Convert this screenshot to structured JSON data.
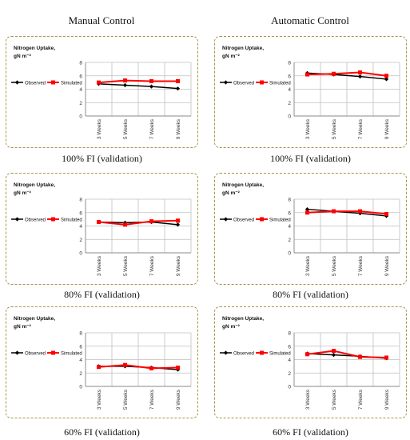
{
  "headers": {
    "left": "Manual Control",
    "right": "Automatic Control"
  },
  "colors": {
    "observed": "#000000",
    "simulated": "#ff0000",
    "grid": "#bfbfbf",
    "frame": "#a8924a"
  },
  "chart_data": [
    {
      "type": "line",
      "ylabel_line1": "Nitrogen Uptake,",
      "ylabel_line2": "gN m⁻²",
      "categories": [
        "3 Weeks",
        "5 Weeks",
        "7 Weeks",
        "9 Weeks"
      ],
      "ylim": [
        0,
        8
      ],
      "yticks": [
        "0",
        "2",
        "4",
        "6",
        "8"
      ],
      "grid": true,
      "legend": "left",
      "series": [
        {
          "name": "Observed",
          "values": [
            4.8,
            4.6,
            4.4,
            4.1
          ]
        },
        {
          "name": "Simulated",
          "values": [
            5.0,
            5.3,
            5.2,
            5.2
          ]
        }
      ],
      "caption": "100% FI (validation)"
    },
    {
      "type": "line",
      "ylabel_line1": "Nitrogen Uptake,",
      "ylabel_line2": "gN m⁻²",
      "categories": [
        "3 Weeks",
        "5 Weeks",
        "7 Weeks",
        "9 Weeks"
      ],
      "ylim": [
        0,
        8
      ],
      "yticks": [
        "0",
        "2",
        "4",
        "6",
        "8"
      ],
      "grid": true,
      "legend": "left",
      "series": [
        {
          "name": "Observed",
          "values": [
            6.4,
            6.2,
            5.9,
            5.5
          ]
        },
        {
          "name": "Simulated",
          "values": [
            6.2,
            6.3,
            6.5,
            6.0
          ]
        }
      ],
      "caption": "100% FI (validation)"
    },
    {
      "type": "line",
      "ylabel_line1": "Nitrogen Uptake,",
      "ylabel_line2": "gN m⁻²",
      "categories": [
        "3 Weeks",
        "5 Weeks",
        "7 Weeks",
        "9 Weeks"
      ],
      "ylim": [
        0,
        8
      ],
      "yticks": [
        "0",
        "2",
        "4",
        "6",
        "8"
      ],
      "grid": true,
      "legend": "left",
      "series": [
        {
          "name": "Observed",
          "values": [
            4.6,
            4.5,
            4.6,
            4.2
          ]
        },
        {
          "name": "Simulated",
          "values": [
            4.6,
            4.2,
            4.7,
            4.8
          ]
        }
      ],
      "caption": "80% FI (validation)"
    },
    {
      "type": "line",
      "ylabel_line1": "Nitrogen Uptake,",
      "ylabel_line2": "gN m⁻²",
      "categories": [
        "3 Weeks",
        "5 Weeks",
        "7 Weeks",
        "9 Weeks"
      ],
      "ylim": [
        0,
        8
      ],
      "yticks": [
        "0",
        "2",
        "4",
        "6",
        "8"
      ],
      "grid": true,
      "legend": "left",
      "series": [
        {
          "name": "Observed",
          "values": [
            6.5,
            6.2,
            5.9,
            5.5
          ]
        },
        {
          "name": "Simulated",
          "values": [
            6.0,
            6.2,
            6.2,
            5.8
          ]
        }
      ],
      "caption": "80% FI (validation)"
    },
    {
      "type": "line",
      "ylabel_line1": "Nitrogen Uptake,",
      "ylabel_line2": "gN m⁻²",
      "categories": [
        "3 Weeks",
        "5 Weeks",
        "7 Weeks",
        "9 Weeks"
      ],
      "ylim": [
        0,
        8
      ],
      "yticks": [
        "0",
        "2",
        "4",
        "6",
        "8"
      ],
      "grid": true,
      "legend": "left",
      "series": [
        {
          "name": "Observed",
          "values": [
            3.0,
            3.0,
            2.8,
            2.5
          ]
        },
        {
          "name": "Simulated",
          "values": [
            2.9,
            3.2,
            2.7,
            2.8
          ]
        }
      ],
      "caption": "60% FI (validation)"
    },
    {
      "type": "line",
      "ylabel_line1": "Nitrogen Uptake,",
      "ylabel_line2": "gN m⁻²",
      "categories": [
        "3 Weeks",
        "5 Weeks",
        "7 Weeks",
        "9 Weeks"
      ],
      "ylim": [
        0,
        8
      ],
      "yticks": [
        "0",
        "2",
        "4",
        "6",
        "8"
      ],
      "grid": true,
      "legend": "left",
      "series": [
        {
          "name": "Observed",
          "values": [
            4.9,
            4.7,
            4.5,
            4.2
          ]
        },
        {
          "name": "Simulated",
          "values": [
            4.8,
            5.3,
            4.4,
            4.3
          ]
        }
      ],
      "caption": "60% FI (validation)"
    }
  ]
}
